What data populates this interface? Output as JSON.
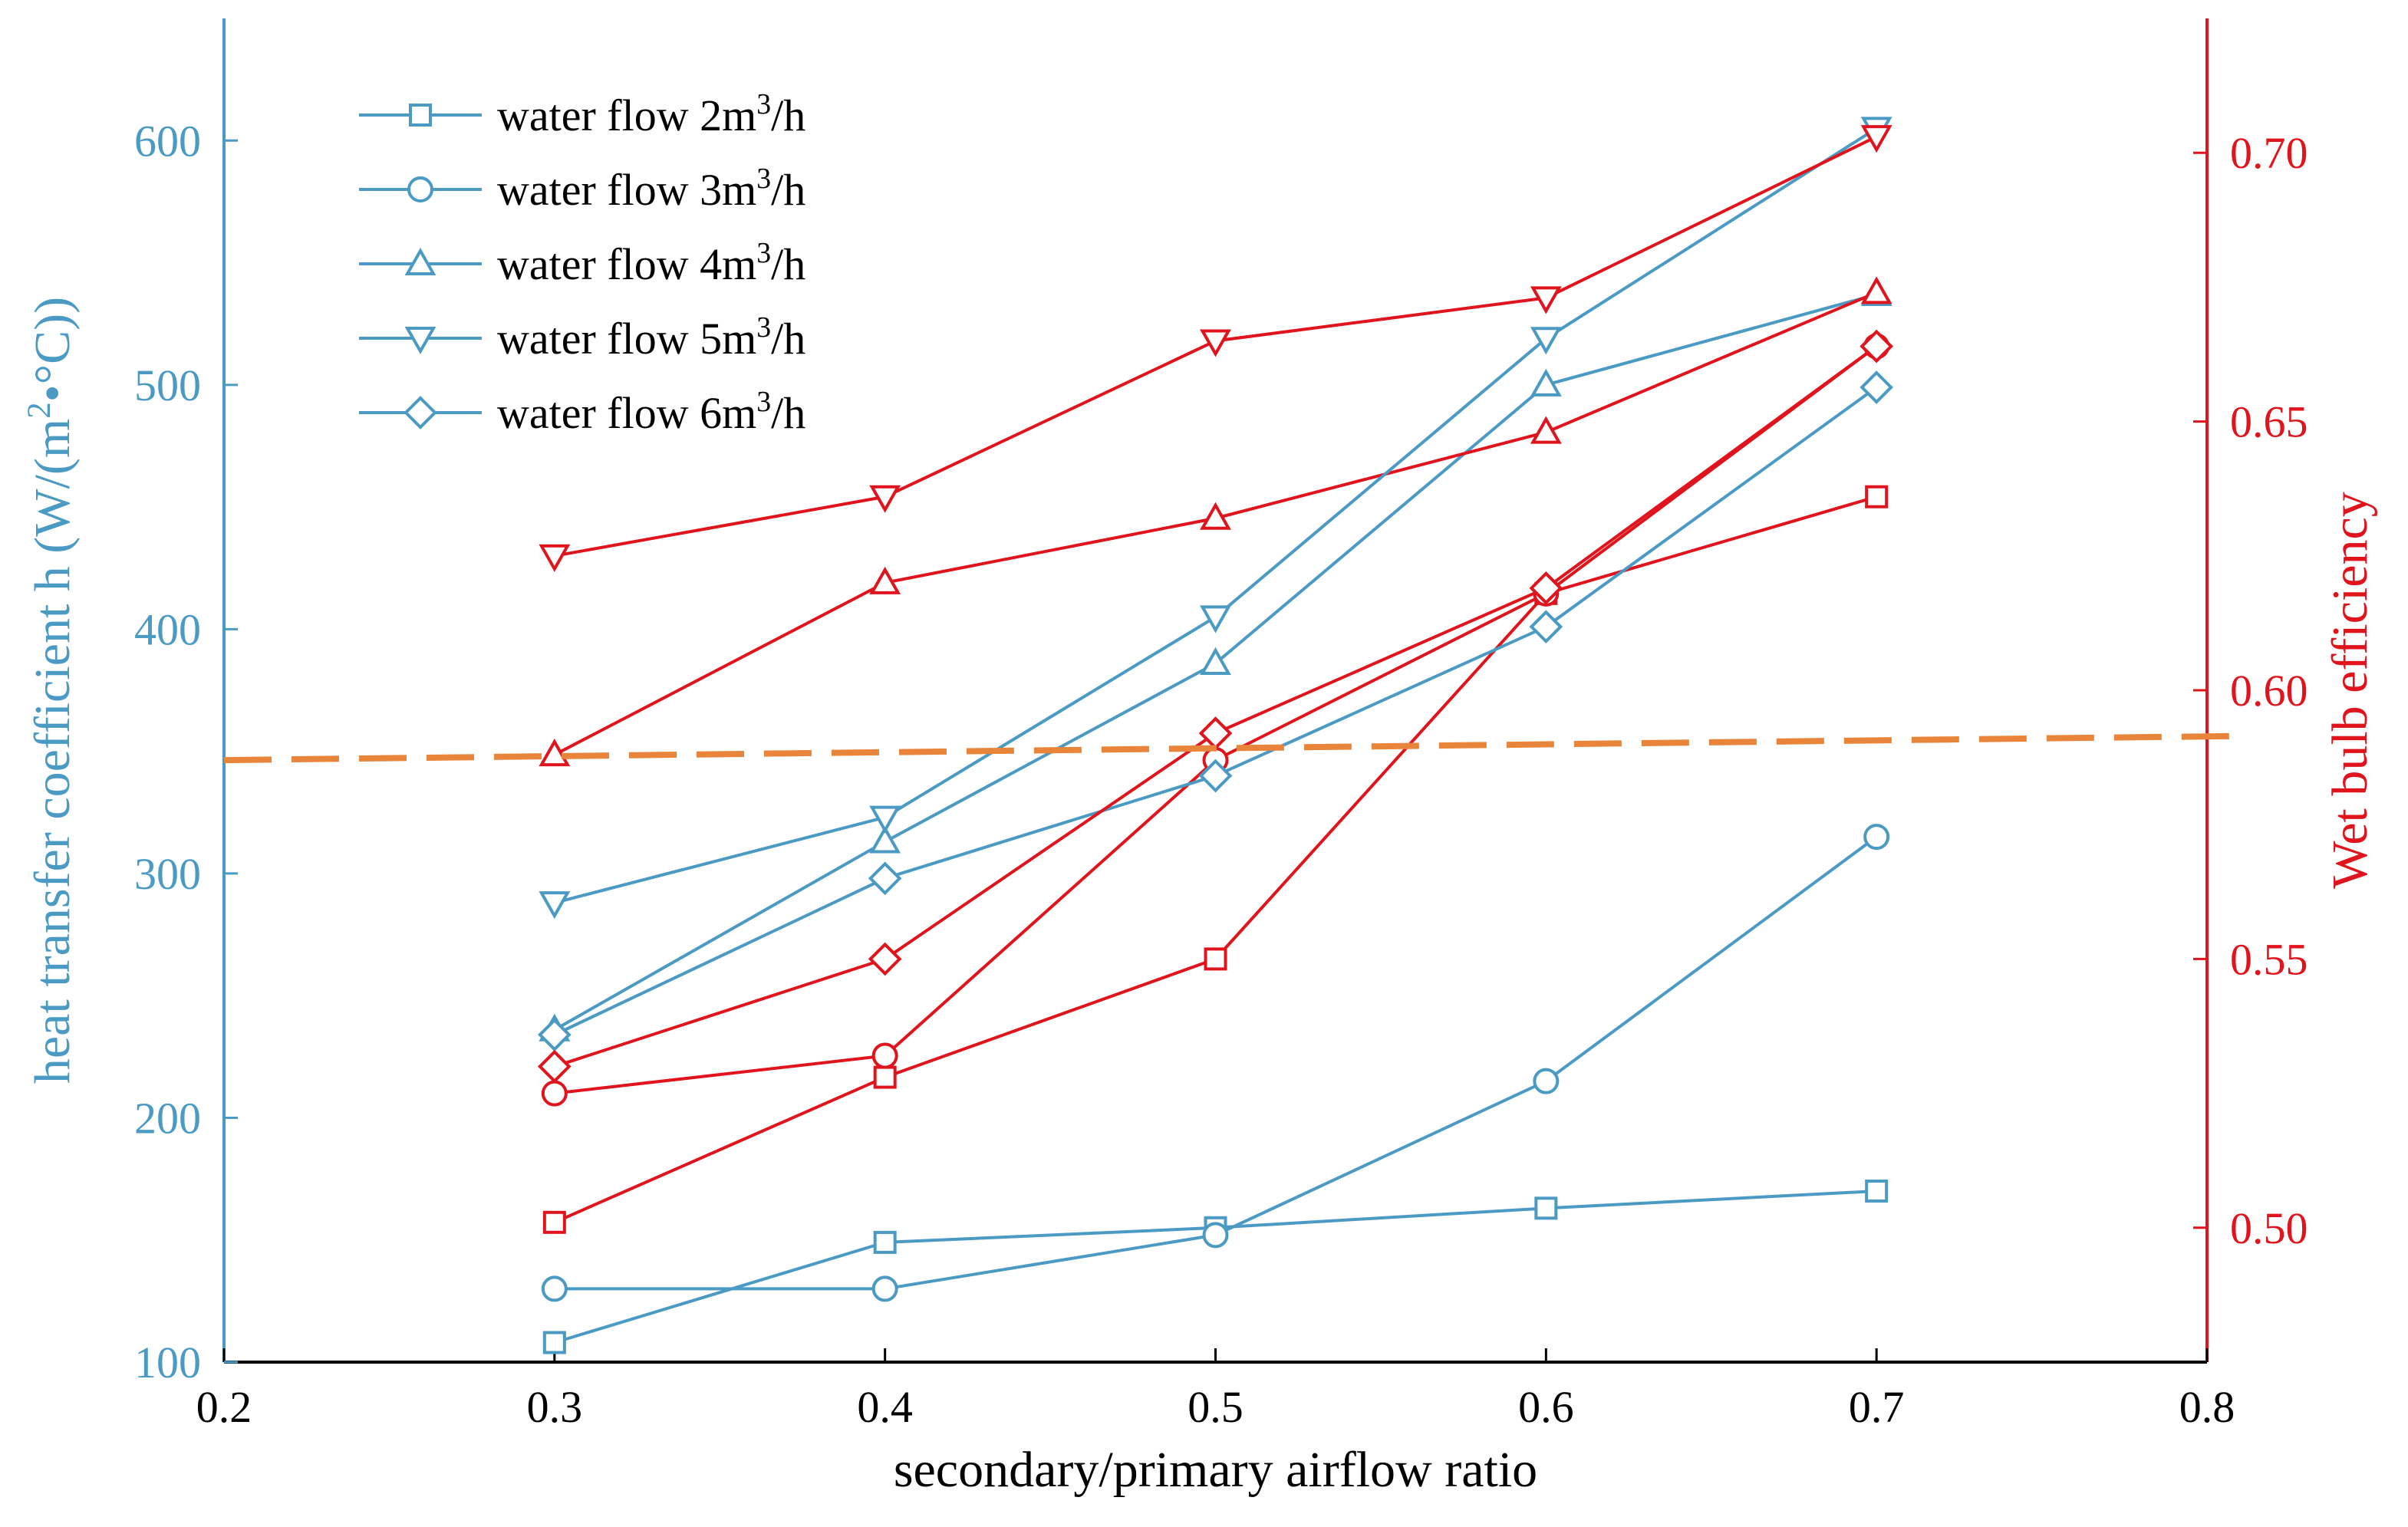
{
  "chart_data": {
    "type": "line",
    "xlabel": "secondary/primary airflow ratio",
    "ylabel_left": "heat transfer coefficient h (W/(m²•°C))",
    "ylabel_right": "Wet bulb efficiency",
    "xlim": [
      0.2,
      0.8
    ],
    "ylim_left": [
      100,
      650
    ],
    "ylim_right": [
      0.475,
      0.725
    ],
    "x_ticks": [
      "0.2",
      "0.3",
      "0.4",
      "0.5",
      "0.6",
      "0.7",
      "0.8"
    ],
    "y_left_ticks": [
      "100",
      "200",
      "300",
      "400",
      "500",
      "600"
    ],
    "y_right_ticks": [
      "0.50",
      "0.55",
      "0.60",
      "0.65",
      "0.70"
    ],
    "grid": false,
    "legend_position": "top-left",
    "colors": {
      "left_axis": "#4a9ac4",
      "right_axis": "#e0141c",
      "reference_line": "#e8853a"
    },
    "x": [
      0.3,
      0.4,
      0.5,
      0.6,
      0.7
    ],
    "series": [
      {
        "legend_label": "water flow 2m³/h",
        "marker": "square",
        "heat_transfer": [
          108,
          149,
          155,
          163,
          170
        ],
        "wet_bulb_efficiency": [
          0.501,
          0.528,
          0.55,
          0.618,
          0.636
        ]
      },
      {
        "legend_label": "water flow 3m³/h",
        "marker": "circle",
        "heat_transfer": [
          130,
          130,
          152,
          215,
          315
        ],
        "wet_bulb_efficiency": [
          0.525,
          0.532,
          0.587,
          0.618,
          0.664
        ]
      },
      {
        "legend_label": "water flow 4m³/h",
        "marker": "triangle-up",
        "heat_transfer": [
          236,
          313,
          386,
          500,
          537
        ],
        "wet_bulb_efficiency": [
          0.588,
          0.62,
          0.632,
          0.648,
          0.674
        ]
      },
      {
        "legend_label": "water flow 5m³/h",
        "marker": "triangle-down",
        "heat_transfer": [
          288,
          323,
          405,
          519,
          605
        ],
        "wet_bulb_efficiency": [
          0.625,
          0.636,
          0.665,
          0.673,
          0.703
        ]
      },
      {
        "legend_label": "water flow 6m³/h",
        "marker": "diamond",
        "heat_transfer": [
          234,
          298,
          340,
          401,
          499
        ],
        "wet_bulb_efficiency": [
          0.53,
          0.55,
          0.592,
          0.619,
          0.664
        ]
      }
    ],
    "reference_line": {
      "style": "dashed",
      "axis": "right",
      "x": [
        0.2,
        0.8
      ],
      "y": [
        0.587,
        0.5915
      ]
    }
  }
}
